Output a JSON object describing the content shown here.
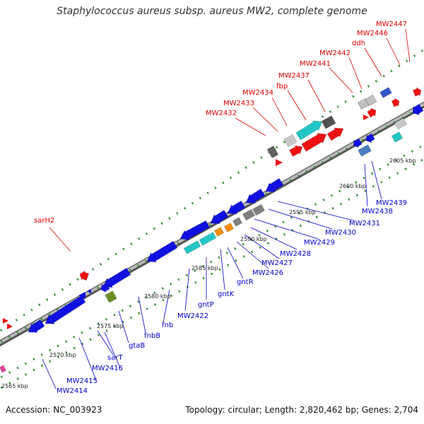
{
  "title": "Staphylococcus aureus subsp. aureus MW2, complete genome",
  "accession": "Accession: NC_003923",
  "summary": "Topology: circular; Length: 2,820,462 bp; Genes: 2,704",
  "colors": {
    "backbone": "#9a9a9a",
    "dots": "#2a8a2a",
    "forward_label": "#dd0000",
    "reverse_label": "#0000cc",
    "blue_gene": "#1010e0",
    "red_gene": "#ee1111",
    "cyan_gene": "#22c6c6",
    "gray_gene": "#808080",
    "orange_gene": "#ff8c00",
    "olive_gene": "#6b8e23"
  },
  "scale_ticks": [
    "2565 kbp",
    "2570 kbp",
    "2575 kbp",
    "2580 kbp",
    "2585 kbp",
    "2590 kbp",
    "2595 kbp",
    "2600 kbp",
    "2605 kbp"
  ],
  "forward_labels": [
    "sarH2",
    "MW2432",
    "MW2433",
    "MW2434",
    "fbp",
    "MW2437",
    "MW2441",
    "MW2442",
    "ddh",
    "MW2446",
    "MW2447"
  ],
  "reverse_labels": [
    "MW2414",
    "MW2415",
    "MW2416",
    "sarT",
    "gtaB",
    "fnbB",
    "fnb",
    "MW2422",
    "gntP",
    "gntK",
    "gntR",
    "MW2426",
    "MW2427",
    "MW2428",
    "MW2429",
    "MW2430",
    "MW2431",
    "MW2438",
    "MW2439"
  ]
}
